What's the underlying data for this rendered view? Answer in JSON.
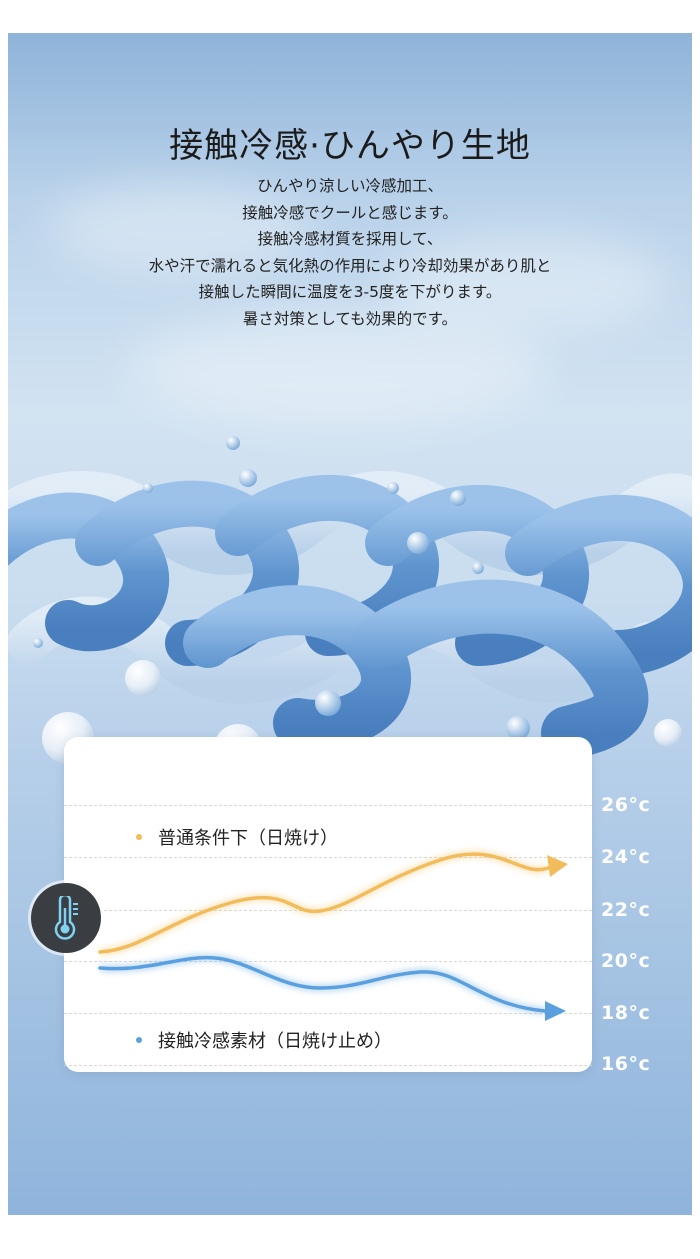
{
  "header": {
    "title": "接触冷感·ひんやり生地",
    "description_lines": [
      "ひんやり涼しい冷感加工、",
      "接触冷感でクールと感じます。",
      "接触冷感材質を採用して、",
      "水や汗で濡れると気化熱の作用により冷却効果があり肌と",
      "接触した瞬間に温度を3-5度を下がります。",
      "暑さ対策としても効果的です。"
    ]
  },
  "chart": {
    "y_ticks": [
      "26°c",
      "24°c",
      "22°c",
      "20°c",
      "18°c",
      "16°c"
    ],
    "series": [
      {
        "name": "普通条件下（日焼け）",
        "color": "#f2bc5a"
      },
      {
        "name": "接触冷感素材（日焼け止め）",
        "color": "#5aa0e0"
      }
    ],
    "icon": "thermometer-icon"
  },
  "colors": {
    "background": "#b9d2ea",
    "orange_series": "#f2bc5a",
    "blue_series": "#5aa0e0",
    "icon_circle": "#3a3d42",
    "icon_accent": "#7fd3f0"
  }
}
